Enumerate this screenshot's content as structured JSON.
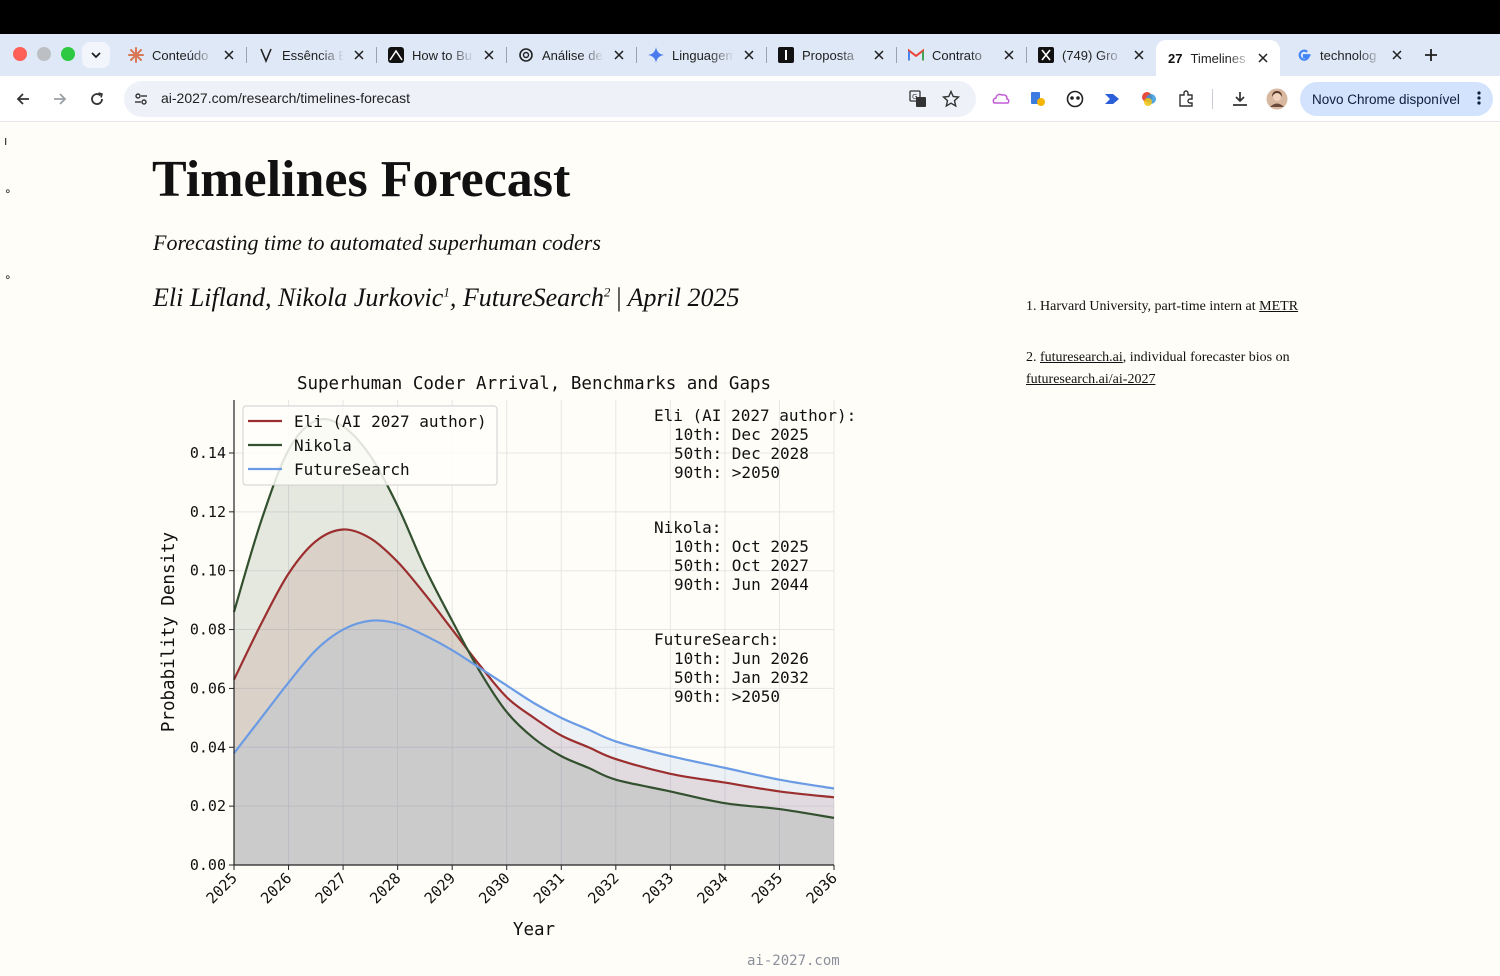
{
  "browser": {
    "tabs": [
      {
        "title": "Conteúdo",
        "icon": "claude-icon",
        "active": false
      },
      {
        "title": "Essência E",
        "icon": "essencia-icon",
        "active": false
      },
      {
        "title": "How to Bu",
        "icon": "mountain-icon",
        "active": false
      },
      {
        "title": "Análise de",
        "icon": "openai-icon",
        "active": false
      },
      {
        "title": "Linguagem",
        "icon": "gemini-icon",
        "active": false
      },
      {
        "title": "Proposta",
        "icon": "doc-icon",
        "active": false
      },
      {
        "title": "Contrato",
        "icon": "gmail-icon",
        "active": false
      },
      {
        "title": "(749) Gro",
        "icon": "x-icon",
        "active": false
      },
      {
        "title": "Timelines",
        "icon": "ai2027-icon",
        "favicon_text": "27",
        "active": true
      },
      {
        "title": "technolog",
        "icon": "google-icon",
        "active": false
      }
    ],
    "url": "ai-2027.com/research/timelines-forecast",
    "update_button": "Novo Chrome disponível"
  },
  "page": {
    "title": "Timelines Forecast",
    "subtitle": "Forecasting time to automated superhuman coders",
    "authors": {
      "a1": "Eli Lifland",
      "a2": "Nikola Jurkovic",
      "a2_sup": "1",
      "a3": "FutureSearch",
      "a3_sup": "2",
      "date": "April 2025"
    },
    "footnotes": [
      {
        "num": "1.",
        "text": "Harvard University, part-time intern at ",
        "link": "METR"
      },
      {
        "num": "2.",
        "link": "futuresearch.ai",
        "text": ", individual forecaster bios on ",
        "link2": "futuresearch.ai/ai-2027"
      }
    ],
    "watermark": "ai-2027.com"
  },
  "chart_data": {
    "type": "line",
    "title": "Superhuman Coder Arrival, Benchmarks and Gaps",
    "xlabel": "Year",
    "ylabel": "Probability Density",
    "xlim": [
      2025,
      2036
    ],
    "ylim": [
      0,
      0.158
    ],
    "xticks": [
      "2025",
      "2026",
      "2027",
      "2028",
      "2029",
      "2030",
      "2031",
      "2032",
      "2033",
      "2034",
      "2035",
      "2036"
    ],
    "yticks": [
      "0.00",
      "0.02",
      "0.04",
      "0.06",
      "0.08",
      "0.10",
      "0.12",
      "0.14"
    ],
    "grid": true,
    "legend_position": "top-left",
    "x": [
      2025,
      2025.5,
      2026,
      2026.5,
      2027,
      2027.5,
      2028,
      2028.5,
      2029,
      2029.5,
      2030,
      2030.5,
      2031,
      2031.5,
      2032,
      2033,
      2034,
      2035,
      2036
    ],
    "series": [
      {
        "name": "Eli (AI 2027 author)",
        "color": "#9b2f2f",
        "values": [
          0.063,
          0.082,
          0.099,
          0.11,
          0.114,
          0.111,
          0.103,
          0.092,
          0.08,
          0.068,
          0.057,
          0.05,
          0.044,
          0.04,
          0.036,
          0.031,
          0.028,
          0.025,
          0.023
        ]
      },
      {
        "name": "Nikola",
        "color": "#33502f",
        "values": [
          0.086,
          0.117,
          0.141,
          0.151,
          0.149,
          0.139,
          0.122,
          0.101,
          0.083,
          0.066,
          0.052,
          0.043,
          0.037,
          0.033,
          0.029,
          0.025,
          0.021,
          0.019,
          0.016
        ]
      },
      {
        "name": "FutureSearch",
        "color": "#6a9be4",
        "values": [
          0.038,
          0.05,
          0.062,
          0.073,
          0.08,
          0.083,
          0.082,
          0.078,
          0.073,
          0.067,
          0.061,
          0.055,
          0.05,
          0.046,
          0.042,
          0.037,
          0.033,
          0.029,
          0.026
        ]
      }
    ],
    "annotations": [
      {
        "name": "Eli (AI 2027 author):",
        "lines": [
          "10th: Dec 2025",
          "50th: Dec 2028",
          "90th: >2050"
        ]
      },
      {
        "name": "Nikola:",
        "lines": [
          "10th: Oct 2025",
          "50th: Oct 2027",
          "90th: Jun 2044"
        ]
      },
      {
        "name": "FutureSearch:",
        "lines": [
          "10th: Jun 2026",
          "50th: Jan 2032",
          "90th: >2050"
        ]
      }
    ]
  }
}
